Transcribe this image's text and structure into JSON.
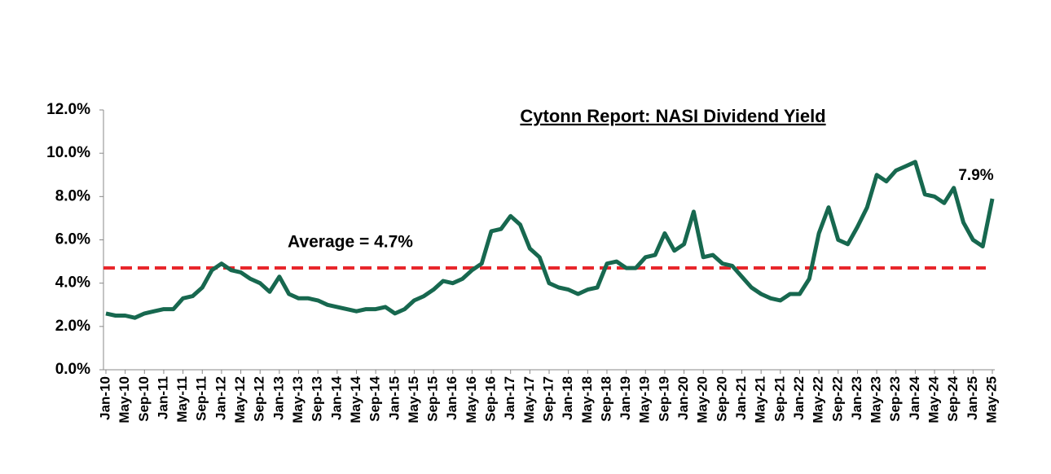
{
  "chart_data": {
    "type": "line",
    "title": "Cytonn Report: NASI Dividend Yield",
    "categories": [
      "Jan-10",
      null,
      "May-10",
      null,
      "Sep-10",
      null,
      "Jan-11",
      null,
      "May-11",
      null,
      "Sep-11",
      null,
      "Jan-12",
      null,
      "May-12",
      null,
      "Sep-12",
      null,
      "Jan-13",
      null,
      "May-13",
      null,
      "Sep-13",
      null,
      "Jan-14",
      null,
      "May-14",
      null,
      "Sep-14",
      null,
      "Jan-15",
      null,
      "May-15",
      null,
      "Sep-15",
      null,
      "Jan-16",
      null,
      "May-16",
      null,
      "Sep-16",
      null,
      "Jan-17",
      null,
      "May-17",
      null,
      "Sep-17",
      null,
      "Jan-18",
      null,
      "May-18",
      null,
      "Sep-18",
      null,
      "Jan-19",
      null,
      "May-19",
      null,
      "Sep-19",
      null,
      "Jan-20",
      null,
      "May-20",
      null,
      "Sep-20",
      null,
      "Jan-21",
      null,
      "May-21",
      null,
      "Sep-21",
      null,
      "Jan-22",
      null,
      "May-22",
      null,
      "Sep-22",
      null,
      "Jan-23",
      null,
      "May-23",
      null,
      "Sep-23",
      null,
      "Jan-24",
      null,
      "May-24",
      null,
      "Sep-24",
      null,
      "Jan-25",
      null,
      "May-25"
    ],
    "series": [
      {
        "name": "NASI Dividend Yield",
        "color": "#17684f",
        "values": [
          2.6,
          2.5,
          2.5,
          2.4,
          2.6,
          2.7,
          2.8,
          2.8,
          3.3,
          3.4,
          3.8,
          4.6,
          4.9,
          4.6,
          4.5,
          4.2,
          4.0,
          3.6,
          4.3,
          3.5,
          3.3,
          3.3,
          3.2,
          3.0,
          2.9,
          2.8,
          2.7,
          2.8,
          2.8,
          2.9,
          2.6,
          2.8,
          3.2,
          3.4,
          3.7,
          4.1,
          4.0,
          4.2,
          4.6,
          4.9,
          6.4,
          6.5,
          7.1,
          6.7,
          5.6,
          5.2,
          4.0,
          3.8,
          3.7,
          3.5,
          3.7,
          3.8,
          4.9,
          5.0,
          4.7,
          4.7,
          5.2,
          5.3,
          6.3,
          5.5,
          5.8,
          7.3,
          5.2,
          5.3,
          4.9,
          4.8,
          4.3,
          3.8,
          3.5,
          3.3,
          3.2,
          3.5,
          3.5,
          4.2,
          6.3,
          7.5,
          6.0,
          5.8,
          6.6,
          7.5,
          9.0,
          8.7,
          9.2,
          9.4,
          9.6,
          8.1,
          8.0,
          7.7,
          8.4,
          6.8,
          6.0,
          5.7,
          7.9
        ],
        "last_label": "7.9%"
      }
    ],
    "average": {
      "value": 4.7,
      "label": "Average = 4.7%",
      "color": "#e8262b"
    },
    "ylim": [
      0,
      12
    ],
    "yticks": [
      {
        "value": 0,
        "label": "0.0%"
      },
      {
        "value": 2,
        "label": "2.0%"
      },
      {
        "value": 4,
        "label": "4.0%"
      },
      {
        "value": 6,
        "label": "6.0%"
      },
      {
        "value": 8,
        "label": "8.0%"
      },
      {
        "value": 10,
        "label": "10.0%"
      },
      {
        "value": 12,
        "label": "12.0%"
      }
    ],
    "grid": false
  }
}
